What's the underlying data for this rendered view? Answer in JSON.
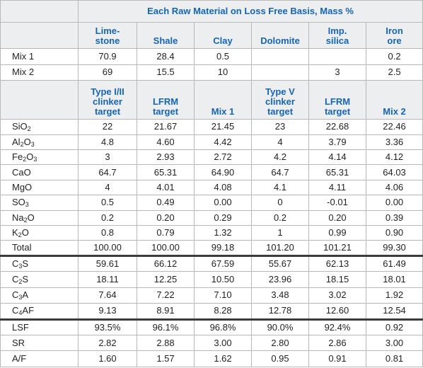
{
  "colors": {
    "header_text": "#1565b8",
    "body_text": "#231f20",
    "shade": "#eceeef",
    "grid": "#b8b8b8",
    "rule": "#3b3b3b"
  },
  "top_header": "Each Raw Material on Loss Free Basis, Mass %",
  "material_headers": [
    [
      "Lime-",
      "stone"
    ],
    [
      "Shale"
    ],
    [
      "Clay"
    ],
    [
      "Dolomite"
    ],
    [
      "Imp.",
      "silica"
    ],
    [
      "Iron",
      "ore"
    ]
  ],
  "mix_rows": [
    {
      "label": "Mix 1",
      "cells": [
        "70.9",
        "28.4",
        "0.5",
        "",
        "",
        "0.2"
      ]
    },
    {
      "label": "Mix 2",
      "cells": [
        "69",
        "15.5",
        "10",
        "",
        "3",
        "2.5"
      ]
    }
  ],
  "target_headers": [
    [
      "Type I/II",
      "clinker",
      "target"
    ],
    [
      "LFRM",
      "target"
    ],
    [
      "Mix 1"
    ],
    [
      "Type V",
      "clinker",
      "target"
    ],
    [
      "LFRM",
      "target"
    ],
    [
      "Mix 2"
    ]
  ],
  "oxide_rows": [
    {
      "label": [
        "SiO",
        "2",
        ""
      ],
      "cells": [
        "22",
        "21.67",
        "21.45",
        "23",
        "22.68",
        "22.46"
      ]
    },
    {
      "label": [
        "Al",
        "2",
        "O",
        "3"
      ],
      "cells": [
        "4.8",
        "4.60",
        "4.42",
        "4",
        "3.79",
        "3.36"
      ]
    },
    {
      "label": [
        "Fe",
        "2",
        "O",
        "3"
      ],
      "cells": [
        "3",
        "2.93",
        "2.72",
        "4.2",
        "4.14",
        "4.12"
      ]
    },
    {
      "label": [
        "CaO"
      ],
      "cells": [
        "64.7",
        "65.31",
        "64.90",
        "64.7",
        "65.31",
        "64.03"
      ]
    },
    {
      "label": [
        "MgO"
      ],
      "cells": [
        "4",
        "4.01",
        "4.08",
        "4.1",
        "4.11",
        "4.06"
      ]
    },
    {
      "label": [
        "SO",
        "3"
      ],
      "cells": [
        "0.5",
        "0.49",
        "0.00",
        "0",
        "-0.01",
        "0.00"
      ]
    },
    {
      "label": [
        "Na",
        "2",
        "O"
      ],
      "cells": [
        "0.2",
        "0.20",
        "0.29",
        "0.2",
        "0.20",
        "0.39"
      ]
    },
    {
      "label": [
        "K",
        "2",
        "O"
      ],
      "cells": [
        "0.8",
        "0.79",
        "1.32",
        "1",
        "0.99",
        "0.90"
      ]
    },
    {
      "label": [
        "Total"
      ],
      "cells": [
        "100.00",
        "100.00",
        "99.18",
        "101.20",
        "101.21",
        "99.30"
      ]
    }
  ],
  "phase_rows": [
    {
      "label": [
        "C",
        "3",
        "S"
      ],
      "cells": [
        "59.61",
        "66.12",
        "67.59",
        "55.67",
        "62.13",
        "61.49"
      ]
    },
    {
      "label": [
        "C",
        "2",
        "S"
      ],
      "cells": [
        "18.11",
        "12.25",
        "10.50",
        "23.96",
        "18.15",
        "18.01"
      ]
    },
    {
      "label": [
        "C",
        "3",
        "A"
      ],
      "cells": [
        "7.64",
        "7.22",
        "7.10",
        "3.48",
        "3.02",
        "1.92"
      ]
    },
    {
      "label": [
        "C",
        "4",
        "AF"
      ],
      "cells": [
        "9.13",
        "8.91",
        "8.28",
        "12.78",
        "12.60",
        "12.54"
      ]
    }
  ],
  "ratio_rows": [
    {
      "label": [
        "LSF"
      ],
      "cells": [
        "93.5%",
        "96.1%",
        "96.8%",
        "90.0%",
        "92.4%",
        "0.92"
      ]
    },
    {
      "label": [
        "SR"
      ],
      "cells": [
        "2.82",
        "2.88",
        "3.00",
        "2.80",
        "2.86",
        "3.00"
      ]
    },
    {
      "label": [
        "A/F"
      ],
      "cells": [
        "1.60",
        "1.57",
        "1.62",
        "0.95",
        "0.91",
        "0.81"
      ]
    }
  ]
}
